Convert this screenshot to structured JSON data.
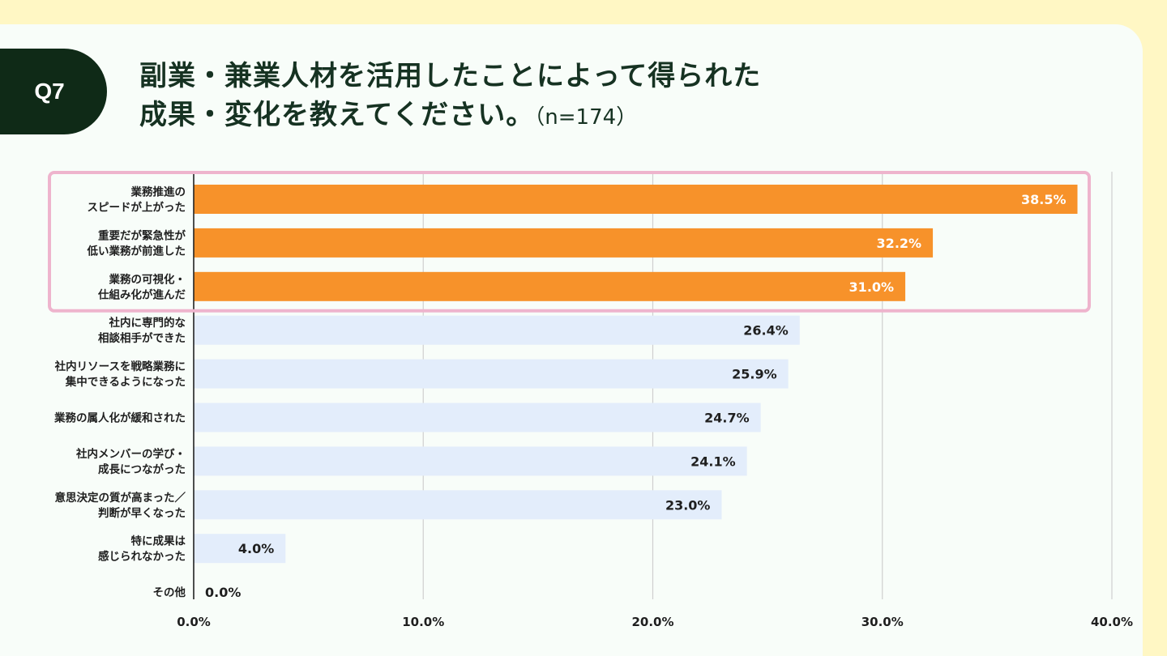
{
  "header": {
    "badge": "Q7",
    "title_line1": "副業・兼業人材を活用したことによって得られた",
    "title_line2": "成果・変化を教えてください。",
    "sample_size": "（n=174）"
  },
  "colors": {
    "highlight_bar": "#f7922a",
    "normal_bar": "#e3edfb",
    "highlight_box": "#eeb4cd",
    "grid": "#cfcfcf",
    "axis": "#222222"
  },
  "chart_data": {
    "type": "bar",
    "orientation": "horizontal",
    "title": "副業・兼業人材を活用したことによって得られた成果・変化を教えてください。（n=174）",
    "categories": [
      [
        "業務推進の",
        "スピードが上がった"
      ],
      [
        "重要だが緊急性が",
        "低い業務が前進した"
      ],
      [
        "業務の可視化・",
        "仕組み化が進んだ"
      ],
      [
        "社内に専門的な",
        "相談相手ができた"
      ],
      [
        "社内リソースを戦略業務に",
        "集中できるようになった"
      ],
      [
        "業務の属人化が緩和された"
      ],
      [
        "社内メンバーの学び・",
        "成長につながった"
      ],
      [
        "意思決定の質が高まった／",
        "判断が早くなった"
      ],
      [
        "特に成果は",
        "感じられなかった"
      ],
      [
        "その他"
      ]
    ],
    "values": [
      38.5,
      32.2,
      31.0,
      26.4,
      25.9,
      24.7,
      24.1,
      23.0,
      4.0,
      0.0
    ],
    "value_labels": [
      "38.5%",
      "32.2%",
      "31.0%",
      "26.4%",
      "25.9%",
      "24.7%",
      "24.1%",
      "23.0%",
      "4.0%",
      "0.0%"
    ],
    "highlighted": [
      true,
      true,
      true,
      false,
      false,
      false,
      false,
      false,
      false,
      false
    ],
    "xlim": [
      0,
      40
    ],
    "xticks": [
      "0.0%",
      "10.0%",
      "20.0%",
      "30.0%",
      "40.0%"
    ],
    "xlabel": "",
    "ylabel": "",
    "grid": "vertical",
    "legend": "none"
  }
}
